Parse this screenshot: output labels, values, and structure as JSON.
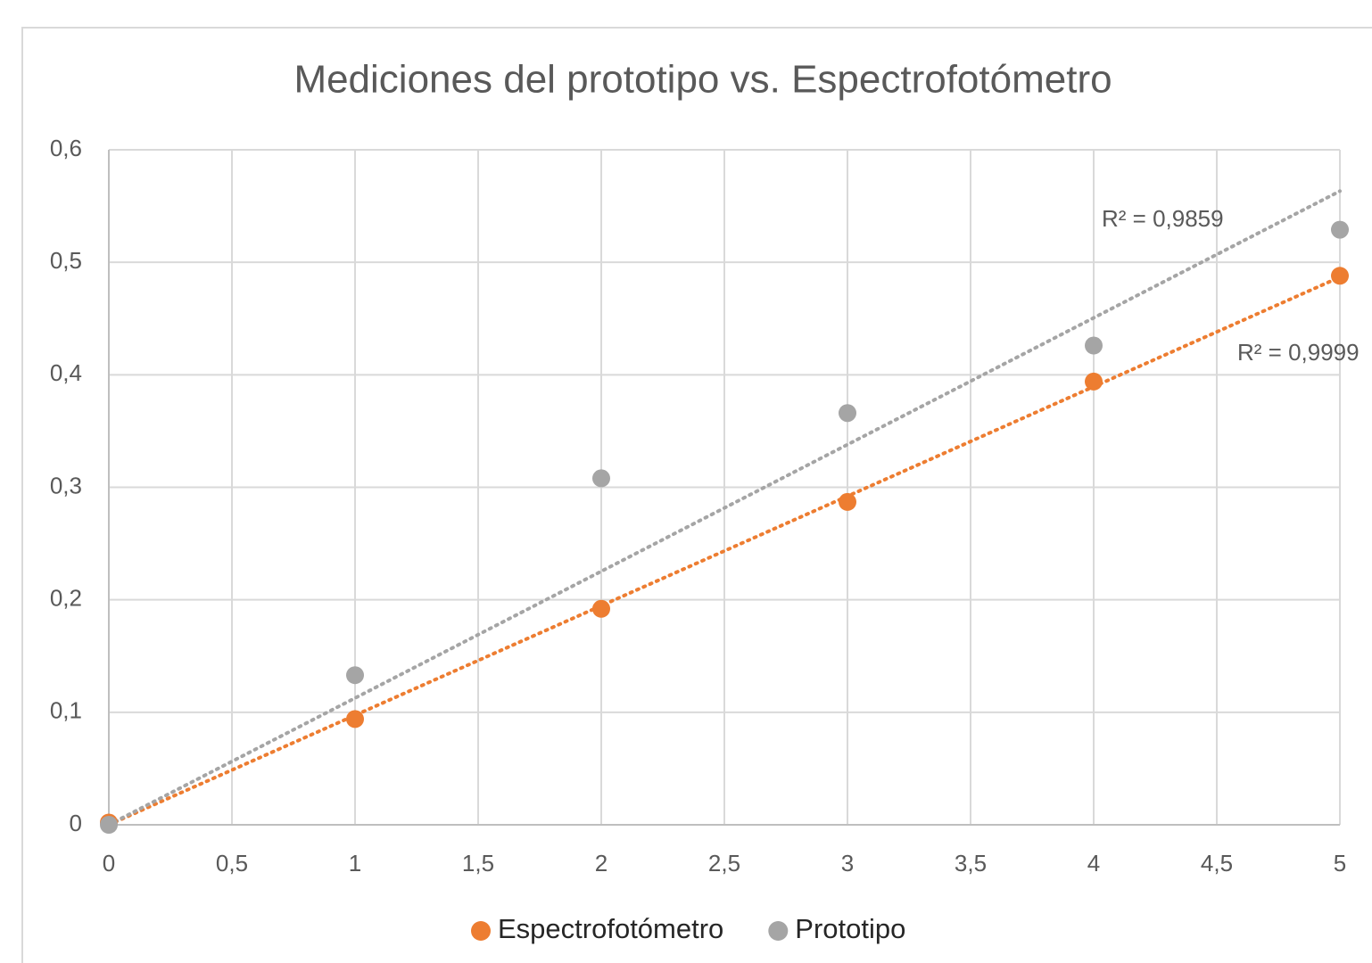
{
  "chart_data": {
    "type": "scatter",
    "title": "Mediciones del prototipo vs. Espectrofotómetro",
    "series": [
      {
        "name": "Espectrofotómetro",
        "color": "#ed7d31",
        "x": [
          0,
          1,
          2,
          3,
          4,
          5
        ],
        "values": [
          0.002,
          0.094,
          0.192,
          0.287,
          0.394,
          0.488
        ],
        "trendline_label": "R² = 0,9999"
      },
      {
        "name": "Prototipo",
        "color": "#a5a5a5",
        "x": [
          0,
          1,
          2,
          3,
          4,
          5
        ],
        "values": [
          0,
          0.133,
          0.308,
          0.366,
          0.426,
          0.529
        ],
        "trendline_label": "R² = 0,9859"
      }
    ],
    "xlim": [
      0,
      5
    ],
    "xticks": [
      0,
      {
        "value": 0.5,
        "label": "0,5"
      },
      1,
      {
        "value": 1.5,
        "label": "1,5"
      },
      2,
      {
        "value": 2.5,
        "label": "2,5"
      },
      3,
      {
        "value": 3.5,
        "label": "3,5"
      },
      4,
      {
        "value": 4.5,
        "label": "4,5"
      },
      5
    ],
    "ylim": [
      0,
      0.6
    ],
    "yticks": [
      0,
      {
        "value": 0.1,
        "label": "0,1"
      },
      {
        "value": 0.2,
        "label": "0,2"
      },
      {
        "value": 0.3,
        "label": "0,3"
      },
      {
        "value": 0.4,
        "label": "0,4"
      },
      {
        "value": 0.5,
        "label": "0,5"
      },
      {
        "value": 0.6,
        "label": "0,6"
      }
    ],
    "grid": true,
    "trendline": "linear",
    "legend": "bottom"
  }
}
